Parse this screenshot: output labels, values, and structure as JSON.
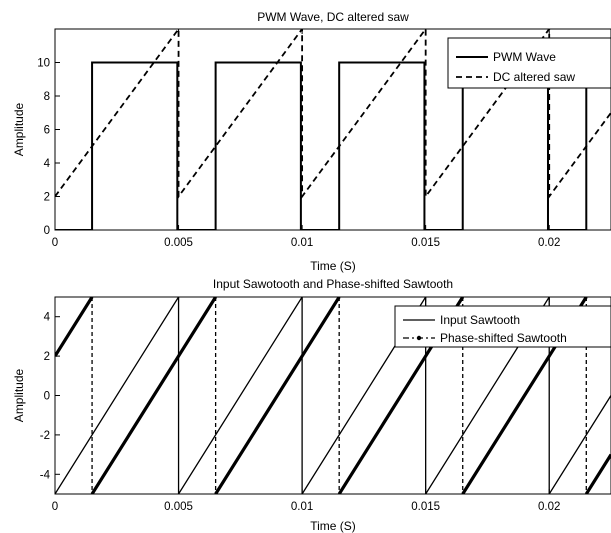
{
  "chart_data": [
    {
      "type": "line",
      "title": "PWM Wave, DC altered saw",
      "xlabel": "Time (S)",
      "ylabel": "Amplitude",
      "xlim": [
        0,
        0.0225
      ],
      "ylim": [
        0,
        12
      ],
      "xticks": [
        0,
        0.005,
        0.01,
        0.015,
        0.02
      ],
      "xtick_labels": [
        "0",
        "0.005",
        "0.01",
        "0.015",
        "0.02"
      ],
      "yticks": [
        0,
        2,
        4,
        6,
        8,
        10
      ],
      "ytick_labels": [
        "0",
        "2",
        "4",
        "6",
        "8",
        "10"
      ],
      "legend_position": "top-right",
      "series": [
        {
          "name": "PWM Wave",
          "style": "solid",
          "x": [
            0,
            0.0015,
            0.0015,
            0.00495,
            0.00495,
            0.0065,
            0.0065,
            0.00995,
            0.00995,
            0.0115,
            0.0115,
            0.01495,
            0.01495,
            0.0165,
            0.0165,
            0.01995,
            0.01995,
            0.0215,
            0.0215,
            0.0225
          ],
          "y": [
            0,
            0,
            10,
            10,
            0,
            0,
            10,
            10,
            0,
            0,
            10,
            10,
            0,
            0,
            10,
            10,
            0,
            0,
            10,
            10
          ]
        },
        {
          "name": "DC altered saw",
          "style": "dashed",
          "x": [
            0,
            0.005,
            0.005,
            0.01,
            0.01,
            0.015,
            0.015,
            0.02,
            0.02,
            0.0225
          ],
          "y": [
            2,
            12,
            2,
            12,
            2,
            12,
            2,
            12,
            2,
            7
          ]
        }
      ]
    },
    {
      "type": "line",
      "title": "Input Sawotooth and Phase-shifted Sawtooth",
      "xlabel": "Time (S)",
      "ylabel": "Amplitude",
      "xlim": [
        0,
        0.0225
      ],
      "ylim": [
        -5,
        5
      ],
      "xticks": [
        0,
        0.005,
        0.01,
        0.015,
        0.02
      ],
      "xtick_labels": [
        "0",
        "0.005",
        "0.01",
        "0.015",
        "0.02"
      ],
      "yticks": [
        -4,
        -2,
        0,
        2,
        4
      ],
      "ytick_labels": [
        "-4",
        "-2",
        "0",
        "2",
        "4"
      ],
      "legend_position": "top-right",
      "series": [
        {
          "name": "Input Sawtooth",
          "style": "solid-thin",
          "x": [
            0,
            0.005,
            0.005,
            0.01,
            0.01,
            0.015,
            0.015,
            0.02,
            0.02,
            0.0225
          ],
          "y": [
            -5,
            5,
            -5,
            5,
            -5,
            5,
            -5,
            5,
            -5,
            0
          ]
        },
        {
          "name": "Phase-shifted Sawtooth",
          "style": "dash-dot-thick",
          "x": [
            0,
            0.0015,
            0.0015,
            0.0065,
            0.0065,
            0.0115,
            0.0115,
            0.0165,
            0.0165,
            0.0215,
            0.0215,
            0.0225
          ],
          "y": [
            2,
            5,
            -5,
            5,
            -5,
            5,
            -5,
            5,
            -5,
            5,
            -5,
            -3
          ]
        }
      ]
    }
  ]
}
